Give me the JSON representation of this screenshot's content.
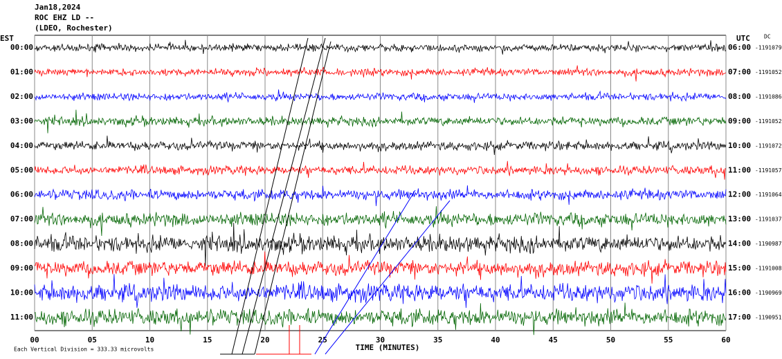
{
  "header": {
    "lines": [
      "Jan18,2024",
      "ROC EHZ LD --",
      "(LDEO, Rochester)"
    ],
    "left_zone": "EST",
    "right_zone": "UTC",
    "dc_label": "DC"
  },
  "rows": [
    {
      "est": "00:00",
      "utc": "06:00",
      "dc": "-1191079",
      "color": "#000000"
    },
    {
      "est": "01:00",
      "utc": "07:00",
      "dc": "-1191052",
      "color": "#ff0000"
    },
    {
      "est": "02:00",
      "utc": "08:00",
      "dc": "-1191086",
      "color": "#0000ff"
    },
    {
      "est": "03:00",
      "utc": "09:00",
      "dc": "-1191052",
      "color": "#006400"
    },
    {
      "est": "04:00",
      "utc": "10:00",
      "dc": "-1191072",
      "color": "#000000"
    },
    {
      "est": "05:00",
      "utc": "11:00",
      "dc": "-1191057",
      "color": "#ff0000"
    },
    {
      "est": "06:00",
      "utc": "12:00",
      "dc": "-1191064",
      "color": "#0000ff"
    },
    {
      "est": "07:00",
      "utc": "13:00",
      "dc": "-1191037",
      "color": "#006400"
    },
    {
      "est": "08:00",
      "utc": "14:00",
      "dc": "-1190987",
      "color": "#000000"
    },
    {
      "est": "09:00",
      "utc": "15:00",
      "dc": "-1191008",
      "color": "#ff0000"
    },
    {
      "est": "10:00",
      "utc": "16:00",
      "dc": "-1190969",
      "color": "#0000ff"
    },
    {
      "est": "11:00",
      "utc": "17:00",
      "dc": "-1190951",
      "color": "#006400"
    }
  ],
  "x_axis": {
    "title": "TIME (MINUTES)",
    "xlim": [
      0,
      60
    ],
    "ticks": [
      {
        "value": 0,
        "label": "00"
      },
      {
        "value": 5,
        "label": "05"
      },
      10,
      15,
      20,
      25,
      30,
      35,
      40,
      45,
      50,
      55,
      60
    ]
  },
  "footer": "Each Vertical Division =  333.33 microvolts"
}
